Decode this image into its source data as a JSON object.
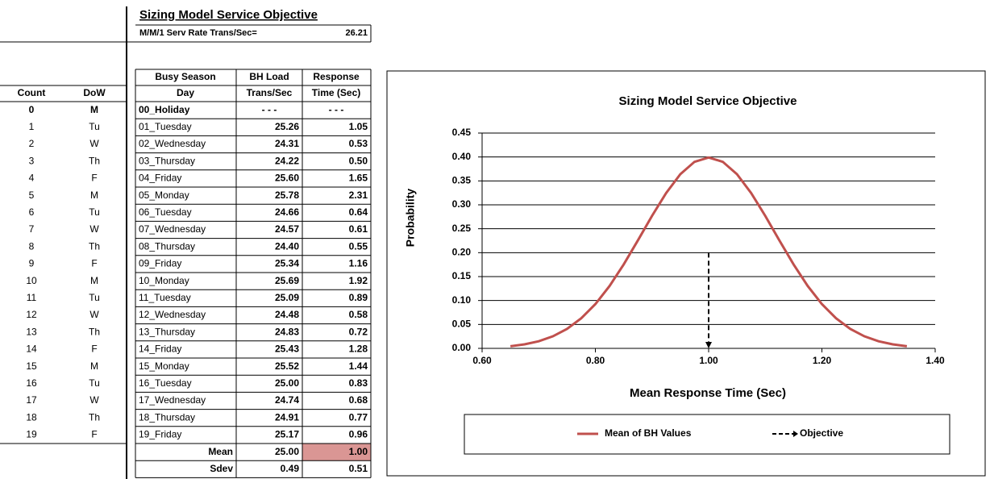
{
  "table": {
    "title": "Sizing Model Service Objective",
    "rate_label": "M/M/1 Serv Rate Trans/Sec=",
    "rate": "26.21",
    "left_headers": [
      "Count",
      "DoW"
    ],
    "header_top": [
      "Busy Season",
      "BH Load",
      "Response"
    ],
    "header_bottom": [
      "Day",
      "Trans/Sec",
      "Time (Sec)"
    ],
    "rows": [
      [
        "0",
        "M",
        "00_Holiday",
        "- - -",
        "- - -"
      ],
      [
        "1",
        "Tu",
        "01_Tuesday",
        "25.26",
        "1.05"
      ],
      [
        "2",
        "W",
        "02_Wednesday",
        "24.31",
        "0.53"
      ],
      [
        "3",
        "Th",
        "03_Thursday",
        "24.22",
        "0.50"
      ],
      [
        "4",
        "F",
        "04_Friday",
        "25.60",
        "1.65"
      ],
      [
        "5",
        "M",
        "05_Monday",
        "25.78",
        "2.31"
      ],
      [
        "6",
        "Tu",
        "06_Tuesday",
        "24.66",
        "0.64"
      ],
      [
        "7",
        "W",
        "07_Wednesday",
        "24.57",
        "0.61"
      ],
      [
        "8",
        "Th",
        "08_Thursday",
        "24.40",
        "0.55"
      ],
      [
        "9",
        "F",
        "09_Friday",
        "25.34",
        "1.16"
      ],
      [
        "10",
        "M",
        "10_Monday",
        "25.69",
        "1.92"
      ],
      [
        "11",
        "Tu",
        "11_Tuesday",
        "25.09",
        "0.89"
      ],
      [
        "12",
        "W",
        "12_Wednesday",
        "24.48",
        "0.58"
      ],
      [
        "13",
        "Th",
        "13_Thursday",
        "24.83",
        "0.72"
      ],
      [
        "14",
        "F",
        "14_Friday",
        "25.43",
        "1.28"
      ],
      [
        "15",
        "M",
        "15_Monday",
        "25.52",
        "1.44"
      ],
      [
        "16",
        "Tu",
        "16_Tuesday",
        "25.00",
        "0.83"
      ],
      [
        "17",
        "W",
        "17_Wednesday",
        "24.74",
        "0.68"
      ],
      [
        "18",
        "Th",
        "18_Thursday",
        "24.91",
        "0.77"
      ],
      [
        "19",
        "F",
        "19_Friday",
        "25.17",
        "0.96"
      ]
    ],
    "summary": [
      [
        "Mean",
        "25.00",
        "1.00"
      ],
      [
        "Sdev",
        "0.49",
        "0.51"
      ]
    ]
  },
  "chart_data": {
    "type": "line",
    "title": "Sizing Model Service Objective",
    "x_label": "Mean Response Time (Sec)",
    "y_label": "Probability",
    "xlim": [
      0.6,
      1.4
    ],
    "ylim": [
      0,
      0.45
    ],
    "xticks": [
      {
        "value": 0.6,
        "label": "0.60"
      },
      {
        "value": 0.8,
        "label": "0.80"
      },
      {
        "value": 1,
        "label": "1.00"
      },
      {
        "value": 1.2,
        "label": "1.20"
      },
      {
        "value": 1.4,
        "label": "1.40"
      }
    ],
    "yticks": [
      {
        "value": 0,
        "label": "0.00"
      },
      {
        "value": 0.05,
        "label": "0.05"
      },
      {
        "value": 0.1,
        "label": "0.10"
      },
      {
        "value": 0.15,
        "label": "0.15"
      },
      {
        "value": 0.2,
        "label": "0.20"
      },
      {
        "value": 0.25,
        "label": "0.25"
      },
      {
        "value": 0.3,
        "label": "0.30"
      },
      {
        "value": 0.35,
        "label": "0.35"
      },
      {
        "value": 0.4,
        "label": "0.40"
      },
      {
        "value": 0.45,
        "label": "0.45"
      }
    ],
    "grid": true,
    "legend": "bottom",
    "series": [
      {
        "name": "Mean of BH Values",
        "color": "#c0504d",
        "style": "solid",
        "x": [
          0.65,
          0.675,
          0.7,
          0.725,
          0.75,
          0.775,
          0.8,
          0.825,
          0.85,
          0.875,
          0.9,
          0.925,
          0.95,
          0.975,
          1,
          1.025,
          1.05,
          1.075,
          1.1,
          1.125,
          1.15,
          1.175,
          1.2,
          1.225,
          1.25,
          1.275,
          1.3,
          1.325,
          1.35
        ],
        "values": [
          0.0044,
          0.0084,
          0.0149,
          0.0252,
          0.0407,
          0.0628,
          0.0925,
          0.1303,
          0.1754,
          0.2255,
          0.2769,
          0.3248,
          0.3641,
          0.3899,
          0.3989,
          0.3899,
          0.3641,
          0.3248,
          0.2769,
          0.2255,
          0.1754,
          0.1303,
          0.0925,
          0.0628,
          0.0407,
          0.0252,
          0.0149,
          0.0084,
          0.0044
        ]
      },
      {
        "name": "Objective",
        "color": "#000000",
        "style": "dashed",
        "x": [
          1,
          1
        ],
        "values": [
          0.2,
          0
        ]
      }
    ]
  }
}
